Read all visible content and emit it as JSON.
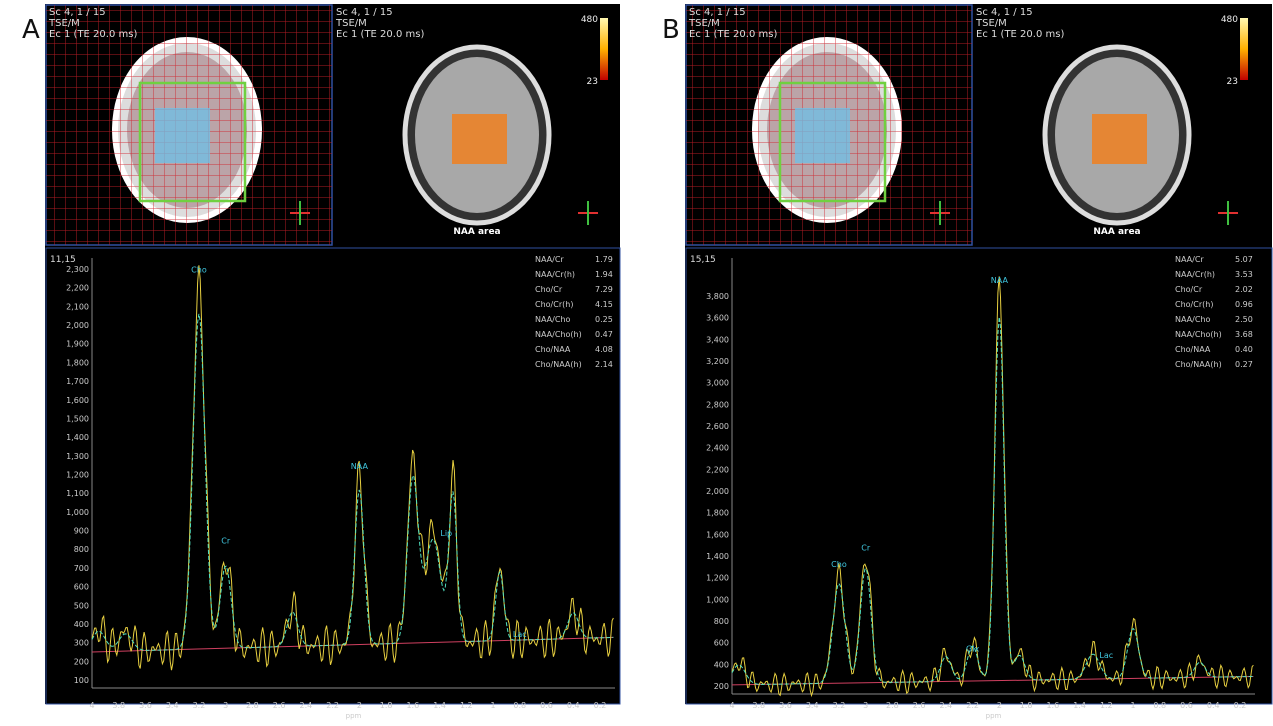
{
  "panels": [
    {
      "label": "A",
      "header_left": [
        "Sc 4, 1 / 15",
        "TSE/M",
        "Ec 1 (TE 20.0 ms)"
      ],
      "header_right": [
        "Sc 4, 1 / 15",
        "TSE/M",
        "Ec 1 (TE 20.0 ms)"
      ],
      "colorbar": [
        "480",
        "23"
      ],
      "map_caption": "NAA area",
      "coords": "11,15",
      "ratios": [
        [
          "NAA/Cr",
          "1.79"
        ],
        [
          "NAA/Cr(h)",
          "1.94"
        ],
        [
          "Cho/Cr",
          "7.29"
        ],
        [
          "Cho/Cr(h)",
          "4.15"
        ],
        [
          "NAA/Cho",
          "0.25"
        ],
        [
          "NAA/Cho(h)",
          "0.47"
        ],
        [
          "Cho/NAA",
          "4.08"
        ],
        [
          "Cho/NAA(h)",
          "2.14"
        ]
      ],
      "yticks": [
        "2,300",
        "2,200",
        "2,100",
        "2,000",
        "1,900",
        "1,800",
        "1,700",
        "1,600",
        "1,500",
        "1,400",
        "1,300",
        "1,200",
        "1,100",
        "1,000",
        "900",
        "800",
        "700",
        "600",
        "500",
        "400",
        "300",
        "200",
        "100"
      ],
      "xticks": [
        "4",
        "3.8",
        "3.6",
        "3.4",
        "3.2",
        "3",
        "2.8",
        "2.6",
        "2.4",
        "2.2",
        "2",
        "1.8",
        "1.6",
        "1.4",
        "1.2",
        "1",
        "0.8",
        "0.6",
        "0.4",
        "0.2"
      ],
      "x_axis_title": "ppm",
      "peaks": [
        "Cho",
        "Cr",
        "NAA",
        "Lip",
        "Lac"
      ]
    },
    {
      "label": "B",
      "header_left": [
        "Sc 4, 1 / 15",
        "TSE/M",
        "Ec 1 (TE 20.0 ms)"
      ],
      "header_right": [
        "Sc 4, 1 / 15",
        "TSE/M",
        "Ec 1 (TE 20.0 ms)"
      ],
      "colorbar": [
        "480",
        "23"
      ],
      "map_caption": "NAA area",
      "coords": "15,15",
      "ratios": [
        [
          "NAA/Cr",
          "5.07"
        ],
        [
          "NAA/Cr(h)",
          "3.53"
        ],
        [
          "Cho/Cr",
          "2.02"
        ],
        [
          "Cho/Cr(h)",
          "0.96"
        ],
        [
          "NAA/Cho",
          "2.50"
        ],
        [
          "NAA/Cho(h)",
          "3.68"
        ],
        [
          "Cho/NAA",
          "0.40"
        ],
        [
          "Cho/NAA(h)",
          "0.27"
        ]
      ],
      "yticks": [
        "3,800",
        "3,600",
        "3,400",
        "3,200",
        "3,000",
        "2,800",
        "2,600",
        "2,400",
        "2,200",
        "2,000",
        "1,800",
        "1,600",
        "1,400",
        "1,200",
        "1,000",
        "800",
        "600",
        "400",
        "200"
      ],
      "xticks": [
        "4",
        "3.8",
        "3.6",
        "3.4",
        "3.2",
        "3",
        "2.8",
        "2.6",
        "2.4",
        "2.2",
        "2",
        "1.8",
        "1.6",
        "1.4",
        "1.2",
        "1",
        "0.8",
        "0.6",
        "0.4",
        "0.2"
      ],
      "x_axis_title": "ppm",
      "peaks": [
        "Cho",
        "Cr",
        "NAA",
        "Glx",
        "Lac"
      ]
    }
  ]
}
